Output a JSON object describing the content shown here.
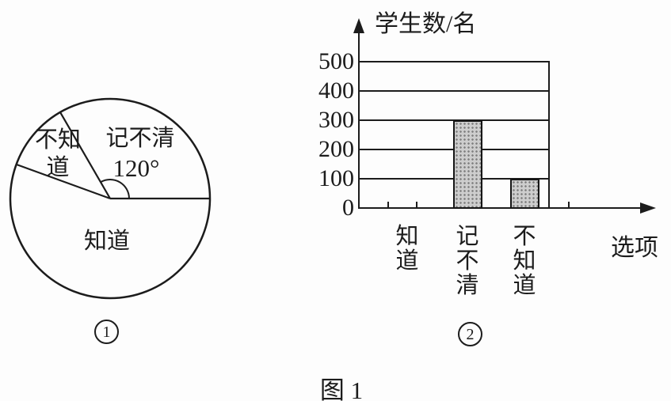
{
  "figure": {
    "caption": "图 1",
    "pie_marker": "1",
    "bar_marker": "2"
  },
  "chart_data": [
    {
      "type": "pie",
      "panel_marker": "1",
      "start_angle_deg": 0,
      "direction": "counterclockwise",
      "slices": [
        {
          "label": "记不清",
          "angle_deg": 120,
          "angle_label": "120°"
        },
        {
          "label": "不知道",
          "angle_deg": 40,
          "angle_label": ""
        },
        {
          "label": "知道",
          "angle_deg": 200,
          "angle_label": ""
        }
      ]
    },
    {
      "type": "bar",
      "panel_marker": "2",
      "ylabel": "学生数/名",
      "xlabel": "选项",
      "categories": [
        "知道",
        "记不清",
        "不知道"
      ],
      "values": [
        null,
        300,
        100
      ],
      "yticks": [
        0,
        100,
        200,
        300,
        400,
        500
      ],
      "ylim": [
        0,
        500
      ],
      "grid": true,
      "legend": "none",
      "bar_fill": "#cdcdcd",
      "line_color": "#1c1c1c"
    }
  ]
}
